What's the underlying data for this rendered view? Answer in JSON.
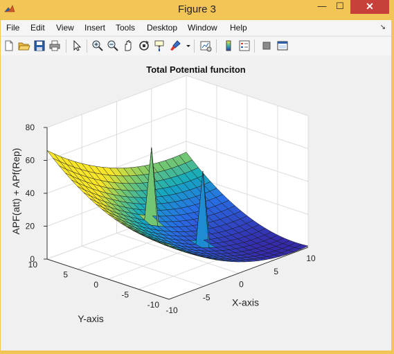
{
  "window": {
    "title": "Figure 3",
    "minimize_label": "—",
    "maximize_label": "☐",
    "close_label": "✕"
  },
  "menu": {
    "items": [
      "File",
      "Edit",
      "View",
      "Insert",
      "Tools",
      "Desktop",
      "Window",
      "Help"
    ],
    "dock_arrow": "↘"
  },
  "toolbar": {
    "icons": [
      "new-figure-icon",
      "open-icon",
      "save-icon",
      "print-icon",
      "pointer-icon",
      "zoom-in-icon",
      "zoom-out-icon",
      "pan-icon",
      "rotate-3d-icon",
      "data-cursor-icon",
      "brush-icon",
      "brush-dropdown-icon",
      "link-plot-icon",
      "colorbar-icon",
      "legend-icon",
      "hide-plot-tools-icon",
      "show-plot-tools-icon"
    ]
  },
  "plot": {
    "title": "Total Potential funciton",
    "xlabel": "X-axis",
    "ylabel": "Y-axis",
    "zlabel": "APF(att) + APf(Rep)"
  },
  "chart_data": {
    "type": "surface",
    "title": "Total Potential funciton",
    "xlabel": "X-axis",
    "ylabel": "Y-axis",
    "zlabel": "APF(att) + APf(Rep)",
    "xlim": [
      -10,
      10
    ],
    "ylim": [
      -10,
      10
    ],
    "zlim": [
      0,
      80
    ],
    "xticks": [
      "-10",
      "-5",
      "0",
      "5",
      "10"
    ],
    "yticks": [
      "-10",
      "-5",
      "0",
      "5",
      "10"
    ],
    "zticks": [
      "0",
      "20",
      "40",
      "60",
      "80"
    ],
    "grid": true,
    "colormap": "parula",
    "peaks": [
      {
        "x": -2,
        "y": 2,
        "z": 65
      },
      {
        "x": 1,
        "y": -3,
        "z": 52
      }
    ]
  }
}
